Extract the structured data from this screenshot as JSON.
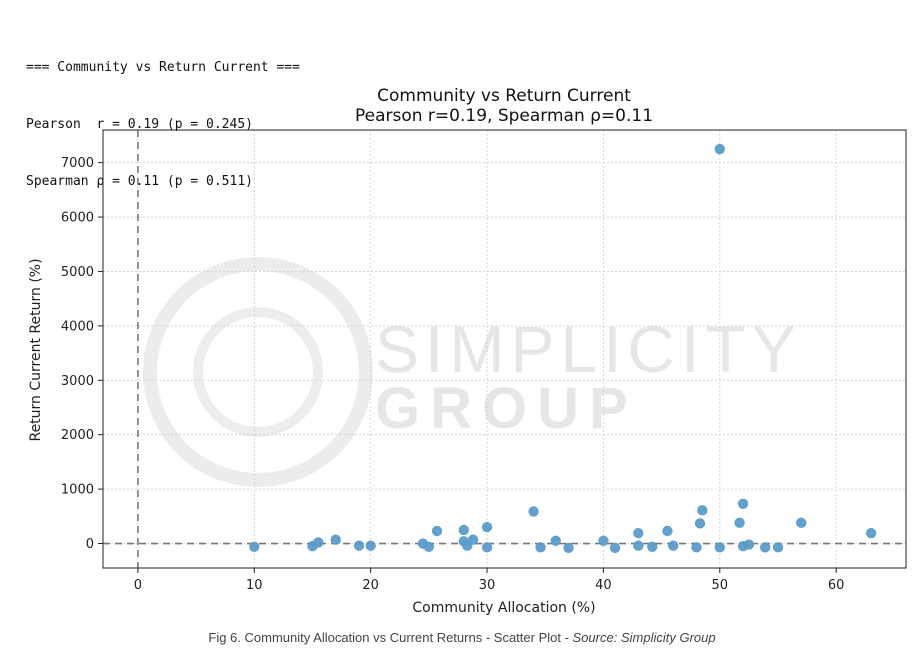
{
  "console": {
    "line1": "=== Community vs Return Current ===",
    "line2": "Pearson  r = 0.19 (p = 0.245)",
    "line3": "Spearman ρ = 0.11 (p = 0.511)"
  },
  "watermark": {
    "line1": "SIMPLICITY",
    "line2": "GROUP"
  },
  "caption": {
    "main": "Fig 6. Community Allocation vs Current Returns - Scatter Plot - ",
    "source": "Source: Simplicity Group"
  },
  "colors": {
    "marker": "#5b9bc8",
    "reference_line": "#777777",
    "grid": "#cccccc"
  },
  "chart_data": {
    "type": "scatter",
    "title": "Community vs Return Current",
    "subtitle": "Pearson r=0.19, Spearman ρ=0.11",
    "xlabel": "Community Allocation (%)",
    "ylabel": "Return Current Return (%)",
    "xlim": [
      -3,
      66
    ],
    "ylim": [
      -450,
      7600
    ],
    "xticks": [
      0,
      10,
      20,
      30,
      40,
      50,
      60
    ],
    "yticks": [
      0,
      1000,
      2000,
      3000,
      4000,
      5000,
      6000,
      7000
    ],
    "grid": true,
    "reference_lines": {
      "x": 0,
      "y": 0,
      "style": "dashed"
    },
    "points": [
      {
        "x": 10,
        "y": -60
      },
      {
        "x": 15,
        "y": -50
      },
      {
        "x": 15.5,
        "y": 20
      },
      {
        "x": 17,
        "y": 70
      },
      {
        "x": 19,
        "y": -40
      },
      {
        "x": 20,
        "y": -40
      },
      {
        "x": 24.5,
        "y": 0
      },
      {
        "x": 25,
        "y": -60
      },
      {
        "x": 25.7,
        "y": 230
      },
      {
        "x": 28,
        "y": 250
      },
      {
        "x": 28,
        "y": 40
      },
      {
        "x": 28.3,
        "y": -40
      },
      {
        "x": 28.8,
        "y": 70
      },
      {
        "x": 30,
        "y": 300
      },
      {
        "x": 30,
        "y": -70
      },
      {
        "x": 34,
        "y": 590
      },
      {
        "x": 34.6,
        "y": -70
      },
      {
        "x": 35.9,
        "y": 50
      },
      {
        "x": 37,
        "y": -80
      },
      {
        "x": 40,
        "y": 50
      },
      {
        "x": 41,
        "y": -80
      },
      {
        "x": 43,
        "y": 190
      },
      {
        "x": 43,
        "y": -40
      },
      {
        "x": 44.2,
        "y": -60
      },
      {
        "x": 45.5,
        "y": 230
      },
      {
        "x": 46,
        "y": -40
      },
      {
        "x": 48,
        "y": -70
      },
      {
        "x": 48.3,
        "y": 370
      },
      {
        "x": 48.5,
        "y": 610
      },
      {
        "x": 50,
        "y": 7250
      },
      {
        "x": 50,
        "y": -70
      },
      {
        "x": 51.7,
        "y": 380
      },
      {
        "x": 52,
        "y": 730
      },
      {
        "x": 52,
        "y": -50
      },
      {
        "x": 52.5,
        "y": -20
      },
      {
        "x": 53.9,
        "y": -70
      },
      {
        "x": 55,
        "y": -70
      },
      {
        "x": 57,
        "y": 380
      },
      {
        "x": 63,
        "y": 190
      }
    ]
  }
}
